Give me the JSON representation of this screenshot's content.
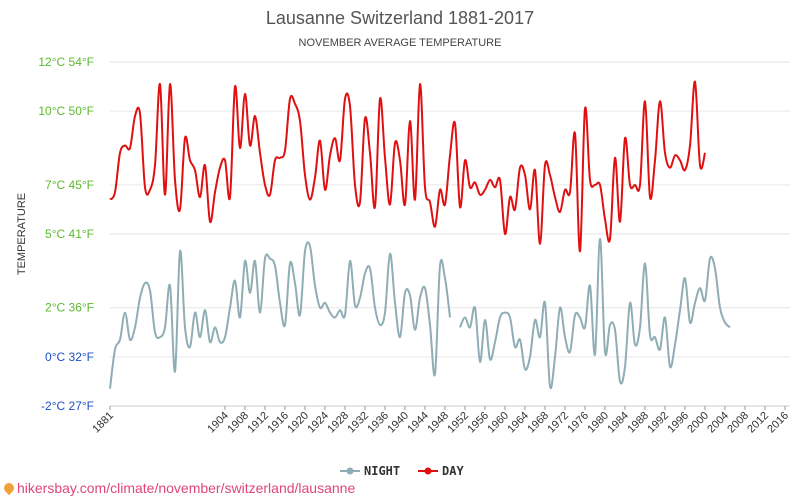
{
  "chart_data": {
    "type": "line",
    "title": "Lausanne Switzerland 1881-2017",
    "subtitle": "NOVEMBER AVERAGE TEMPERATURE",
    "ylabel": "TEMPERATURE",
    "ylim": [
      -2,
      12
    ],
    "y_ticks": [
      {
        "value": 12,
        "label": "12°C 54°F",
        "color": "#5cb82e"
      },
      {
        "value": 10,
        "label": "10°C 50°F",
        "color": "#5cb82e"
      },
      {
        "value": 7,
        "label": "7°C 45°F",
        "color": "#5cb82e"
      },
      {
        "value": 5,
        "label": "5°C 41°F",
        "color": "#5cb82e"
      },
      {
        "value": 2,
        "label": "2°C 36°F",
        "color": "#5cb82e"
      },
      {
        "value": 0,
        "label": "0°C 32°F",
        "color": "#1f4fc7"
      },
      {
        "value": -2,
        "label": "-2°C 27°F",
        "color": "#1f4fc7"
      }
    ],
    "x_start": 1881,
    "x_end": 2017,
    "x_tick_labels": [
      "1881",
      "1904",
      "1908",
      "1912",
      "1916",
      "1920",
      "1924",
      "1928",
      "1932",
      "1936",
      "1940",
      "1944",
      "1948",
      "1952",
      "1956",
      "1960",
      "1964",
      "1968",
      "1972",
      "1976",
      "1980",
      "1984",
      "1988",
      "1992",
      "1996",
      "2000",
      "2004",
      "2008",
      "2012",
      "2016"
    ],
    "grid": true,
    "legend_position": "bottom",
    "series": [
      {
        "name": "NIGHT",
        "color": "#8fadb4",
        "points": [
          [
            1881,
            -1.3
          ],
          [
            1882,
            0.3
          ],
          [
            1883,
            0.7
          ],
          [
            1884,
            1.8
          ],
          [
            1885,
            0.7
          ],
          [
            1886,
            1.2
          ],
          [
            1887,
            2.4
          ],
          [
            1888,
            3.0
          ],
          [
            1889,
            2.7
          ],
          [
            1890,
            1.0
          ],
          [
            1891,
            0.8
          ],
          [
            1892,
            1.2
          ],
          [
            1893,
            2.9
          ],
          [
            1894,
            -0.6
          ],
          [
            1895,
            4.3
          ],
          [
            1896,
            1.2
          ],
          [
            1897,
            0.4
          ],
          [
            1898,
            1.8
          ],
          [
            1899,
            0.8
          ],
          [
            1900,
            1.9
          ],
          [
            1901,
            0.6
          ],
          [
            1902,
            1.2
          ],
          [
            1903,
            0.6
          ],
          [
            1904,
            0.8
          ],
          [
            1905,
            2.0
          ],
          [
            1906,
            3.1
          ],
          [
            1907,
            1.6
          ],
          [
            1908,
            3.9
          ],
          [
            1909,
            2.6
          ],
          [
            1910,
            3.9
          ],
          [
            1911,
            1.8
          ],
          [
            1912,
            4.0
          ],
          [
            1913,
            4.0
          ],
          [
            1914,
            3.7
          ],
          [
            1915,
            2.2
          ],
          [
            1916,
            1.3
          ],
          [
            1917,
            3.8
          ],
          [
            1918,
            3.0
          ],
          [
            1919,
            1.7
          ],
          [
            1920,
            4.3
          ],
          [
            1921,
            4.5
          ],
          [
            1922,
            2.9
          ],
          [
            1923,
            2.0
          ],
          [
            1924,
            2.2
          ],
          [
            1925,
            1.8
          ],
          [
            1926,
            1.6
          ],
          [
            1927,
            1.9
          ],
          [
            1928,
            1.7
          ],
          [
            1929,
            3.9
          ],
          [
            1930,
            2.1
          ],
          [
            1931,
            2.4
          ],
          [
            1932,
            3.4
          ],
          [
            1933,
            3.6
          ],
          [
            1934,
            2.0
          ],
          [
            1935,
            1.3
          ],
          [
            1936,
            1.8
          ],
          [
            1937,
            4.2
          ],
          [
            1938,
            2.2
          ],
          [
            1939,
            0.8
          ],
          [
            1940,
            2.6
          ],
          [
            1941,
            2.5
          ],
          [
            1942,
            1.1
          ],
          [
            1943,
            2.4
          ],
          [
            1944,
            2.8
          ],
          [
            1945,
            1.3
          ],
          [
            1946,
            -0.7
          ],
          [
            1947,
            3.7
          ],
          [
            1948,
            3.2
          ],
          [
            1949,
            1.6
          ],
          [
            1951,
            1.2
          ],
          [
            1952,
            1.6
          ],
          [
            1953,
            1.2
          ],
          [
            1954,
            2.0
          ],
          [
            1955,
            -0.2
          ],
          [
            1956,
            1.5
          ],
          [
            1957,
            -0.1
          ],
          [
            1958,
            0.6
          ],
          [
            1959,
            1.6
          ],
          [
            1960,
            1.8
          ],
          [
            1961,
            1.6
          ],
          [
            1962,
            0.4
          ],
          [
            1963,
            0.7
          ],
          [
            1964,
            -0.5
          ],
          [
            1965,
            0.0
          ],
          [
            1966,
            1.5
          ],
          [
            1967,
            0.8
          ],
          [
            1968,
            2.2
          ],
          [
            1969,
            -1.2
          ],
          [
            1970,
            0.0
          ],
          [
            1971,
            2.0
          ],
          [
            1972,
            0.8
          ],
          [
            1973,
            0.2
          ],
          [
            1974,
            1.7
          ],
          [
            1975,
            1.6
          ],
          [
            1976,
            1.2
          ],
          [
            1977,
            2.9
          ],
          [
            1978,
            0.1
          ],
          [
            1979,
            4.8
          ],
          [
            1980,
            0.2
          ],
          [
            1981,
            1.3
          ],
          [
            1982,
            1.1
          ],
          [
            1983,
            -1.0
          ],
          [
            1984,
            -0.4
          ],
          [
            1985,
            2.2
          ],
          [
            1986,
            0.5
          ],
          [
            1987,
            1.2
          ],
          [
            1988,
            3.8
          ],
          [
            1989,
            0.9
          ],
          [
            1990,
            0.8
          ],
          [
            1991,
            0.3
          ],
          [
            1992,
            1.6
          ],
          [
            1993,
            -0.4
          ],
          [
            1994,
            0.5
          ],
          [
            1995,
            1.9
          ],
          [
            1996,
            3.2
          ],
          [
            1997,
            1.4
          ],
          [
            1998,
            2.2
          ],
          [
            1999,
            2.8
          ],
          [
            2000,
            2.3
          ],
          [
            2001,
            4.0
          ],
          [
            2002,
            3.6
          ],
          [
            2003,
            2.0
          ],
          [
            2004,
            1.4
          ],
          [
            2005,
            1.2
          ]
        ]
      },
      {
        "name": "DAY",
        "color": "#e01010",
        "points": [
          [
            1881,
            6.4
          ],
          [
            1882,
            6.7
          ],
          [
            1883,
            8.3
          ],
          [
            1884,
            8.6
          ],
          [
            1885,
            8.5
          ],
          [
            1886,
            9.8
          ],
          [
            1887,
            9.9
          ],
          [
            1888,
            6.9
          ],
          [
            1889,
            6.8
          ],
          [
            1890,
            7.8
          ],
          [
            1891,
            11.1
          ],
          [
            1892,
            6.6
          ],
          [
            1893,
            11.1
          ],
          [
            1894,
            7.2
          ],
          [
            1895,
            6.0
          ],
          [
            1896,
            8.9
          ],
          [
            1897,
            8.0
          ],
          [
            1898,
            7.6
          ],
          [
            1899,
            6.5
          ],
          [
            1900,
            7.8
          ],
          [
            1901,
            5.5
          ],
          [
            1902,
            6.7
          ],
          [
            1903,
            7.7
          ],
          [
            1904,
            8.0
          ],
          [
            1905,
            6.5
          ],
          [
            1906,
            11.0
          ],
          [
            1907,
            8.5
          ],
          [
            1908,
            10.7
          ],
          [
            1909,
            8.6
          ],
          [
            1910,
            9.8
          ],
          [
            1911,
            8.3
          ],
          [
            1912,
            7.0
          ],
          [
            1913,
            6.6
          ],
          [
            1914,
            8.0
          ],
          [
            1915,
            8.1
          ],
          [
            1916,
            8.4
          ],
          [
            1917,
            10.5
          ],
          [
            1918,
            10.3
          ],
          [
            1919,
            9.6
          ],
          [
            1920,
            7.4
          ],
          [
            1921,
            6.4
          ],
          [
            1922,
            7.3
          ],
          [
            1923,
            8.8
          ],
          [
            1924,
            6.8
          ],
          [
            1925,
            8.2
          ],
          [
            1926,
            8.9
          ],
          [
            1927,
            8.0
          ],
          [
            1928,
            10.5
          ],
          [
            1929,
            10.2
          ],
          [
            1930,
            7.0
          ],
          [
            1931,
            6.3
          ],
          [
            1932,
            9.7
          ],
          [
            1933,
            8.3
          ],
          [
            1934,
            6.1
          ],
          [
            1935,
            10.5
          ],
          [
            1936,
            8.1
          ],
          [
            1937,
            6.2
          ],
          [
            1938,
            8.7
          ],
          [
            1939,
            8.0
          ],
          [
            1940,
            6.2
          ],
          [
            1941,
            9.6
          ],
          [
            1942,
            6.4
          ],
          [
            1943,
            11.1
          ],
          [
            1944,
            6.9
          ],
          [
            1945,
            6.3
          ],
          [
            1946,
            5.3
          ],
          [
            1947,
            6.8
          ],
          [
            1948,
            6.2
          ],
          [
            1949,
            8.2
          ],
          [
            1950,
            9.5
          ],
          [
            1951,
            6.1
          ],
          [
            1952,
            8.0
          ],
          [
            1953,
            6.9
          ],
          [
            1954,
            7.1
          ],
          [
            1955,
            6.6
          ],
          [
            1956,
            6.8
          ],
          [
            1957,
            7.2
          ],
          [
            1958,
            6.9
          ],
          [
            1959,
            7.2
          ],
          [
            1960,
            5.0
          ],
          [
            1961,
            6.5
          ],
          [
            1962,
            6.0
          ],
          [
            1963,
            7.7
          ],
          [
            1964,
            7.4
          ],
          [
            1965,
            6.0
          ],
          [
            1966,
            7.6
          ],
          [
            1967,
            4.6
          ],
          [
            1968,
            7.8
          ],
          [
            1969,
            7.4
          ],
          [
            1970,
            6.5
          ],
          [
            1971,
            5.9
          ],
          [
            1972,
            6.8
          ],
          [
            1973,
            6.7
          ],
          [
            1974,
            9.1
          ],
          [
            1975,
            4.3
          ],
          [
            1976,
            10.1
          ],
          [
            1977,
            7.2
          ],
          [
            1978,
            7.0
          ],
          [
            1979,
            7.0
          ],
          [
            1980,
            5.6
          ],
          [
            1981,
            4.8
          ],
          [
            1982,
            8.1
          ],
          [
            1983,
            5.5
          ],
          [
            1984,
            8.9
          ],
          [
            1985,
            7.0
          ],
          [
            1986,
            7.0
          ],
          [
            1987,
            7.0
          ],
          [
            1988,
            10.4
          ],
          [
            1989,
            6.5
          ],
          [
            1990,
            8.0
          ],
          [
            1991,
            10.4
          ],
          [
            1992,
            8.3
          ],
          [
            1993,
            7.7
          ],
          [
            1994,
            8.2
          ],
          [
            1995,
            8.0
          ],
          [
            1996,
            7.6
          ],
          [
            1997,
            8.6
          ],
          [
            1998,
            11.2
          ],
          [
            1999,
            7.8
          ],
          [
            2000,
            8.3
          ]
        ]
      }
    ]
  },
  "source": {
    "text": "hikersbay.com/climate/november/switzerland/lausanne"
  }
}
